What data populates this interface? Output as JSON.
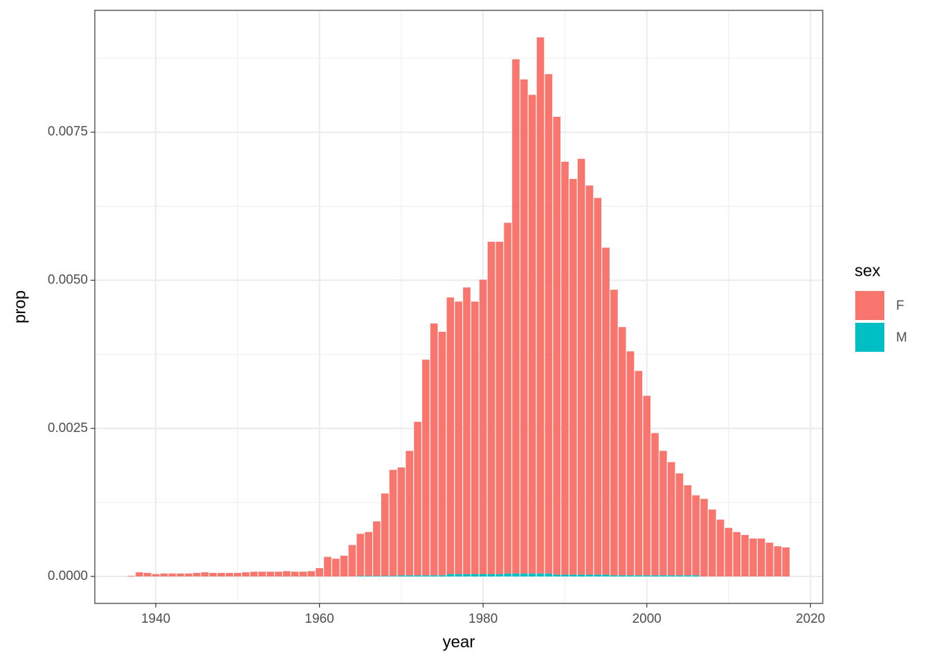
{
  "chart_data": {
    "type": "stacked-bar",
    "x_label": "year",
    "y_label": "prop",
    "x": [
      1937,
      1938,
      1939,
      1940,
      1941,
      1942,
      1943,
      1944,
      1945,
      1946,
      1947,
      1948,
      1949,
      1950,
      1951,
      1952,
      1953,
      1954,
      1955,
      1956,
      1957,
      1958,
      1959,
      1960,
      1961,
      1962,
      1963,
      1964,
      1965,
      1966,
      1967,
      1968,
      1969,
      1970,
      1971,
      1972,
      1973,
      1974,
      1975,
      1976,
      1977,
      1978,
      1979,
      1980,
      1981,
      1982,
      1983,
      1984,
      1985,
      1986,
      1987,
      1988,
      1989,
      1990,
      1991,
      1992,
      1993,
      1994,
      1995,
      1996,
      1997,
      1998,
      1999,
      2000,
      2001,
      2002,
      2003,
      2004,
      2005,
      2006,
      2007,
      2008,
      2009,
      2010,
      2011,
      2012,
      2013,
      2014,
      2015,
      2016,
      2017
    ],
    "series": [
      {
        "name": "F",
        "color": "#F8766D",
        "values": [
          1e-05,
          7e-05,
          6e-05,
          4e-05,
          5e-05,
          5e-05,
          5e-05,
          5e-05,
          6e-05,
          7e-05,
          6e-05,
          6e-05,
          6e-05,
          6e-05,
          7e-05,
          8e-05,
          8e-05,
          8e-05,
          8e-05,
          9e-05,
          8e-05,
          8e-05,
          9e-05,
          0.00014,
          0.00033,
          0.0003,
          0.00035,
          0.00053,
          0.00071,
          0.00074,
          0.00092,
          0.00139,
          0.00179,
          0.00182,
          0.0021,
          0.00259,
          0.00364,
          0.00425,
          0.00411,
          0.00467,
          0.0046,
          0.00484,
          0.0046,
          0.00497,
          0.00561,
          0.00561,
          0.00592,
          0.00868,
          0.00834,
          0.00808,
          0.00905,
          0.00843,
          0.00773,
          0.00697,
          0.00668,
          0.00702,
          0.00657,
          0.00636,
          0.00552,
          0.00482,
          0.00419,
          0.00378,
          0.00345,
          0.00303,
          0.0024,
          0.0021,
          0.00191,
          0.00172,
          0.00152,
          0.00135,
          0.00131,
          0.00113,
          0.00096,
          0.00082,
          0.00075,
          0.0007,
          0.00064,
          0.00064,
          0.00057,
          0.00051,
          0.00049
        ]
      },
      {
        "name": "M",
        "color": "#00BFC4",
        "values": [
          0,
          0,
          0,
          0,
          0,
          0,
          0,
          0,
          0,
          0,
          0,
          0,
          0,
          0,
          0,
          0,
          0,
          0,
          0,
          0,
          0,
          0,
          0,
          0,
          0,
          0,
          0,
          0,
          1e-05,
          1e-05,
          1e-05,
          1e-05,
          1e-05,
          2e-05,
          2e-05,
          2e-05,
          2e-05,
          2e-05,
          2e-05,
          4e-05,
          4e-05,
          4e-05,
          4e-05,
          4e-05,
          4e-05,
          4e-05,
          5e-05,
          5e-05,
          5e-05,
          5e-05,
          5e-05,
          5e-05,
          3e-05,
          3e-05,
          3e-05,
          3e-05,
          3e-05,
          3e-05,
          3e-05,
          2e-05,
          2e-05,
          2e-05,
          2e-05,
          2e-05,
          2e-05,
          2e-05,
          2e-05,
          2e-05,
          2e-05,
          2e-05,
          0,
          0,
          0,
          0,
          0,
          0,
          0,
          0,
          0,
          0,
          0
        ]
      }
    ],
    "legend_title": "sex",
    "xlim": [
      1932.55,
      2021.5
    ],
    "xticks": [
      1940,
      1960,
      1980,
      2000,
      2020
    ],
    "ylim": [
      -0.000455,
      0.009556
    ],
    "yticks": [
      {
        "value": 0,
        "label": "0.0000"
      },
      {
        "value": 0.0025,
        "label": "0.0025"
      },
      {
        "value": 0.005,
        "label": "0.0050"
      },
      {
        "value": 0.0075,
        "label": "0.0075"
      }
    ],
    "grid": true
  }
}
